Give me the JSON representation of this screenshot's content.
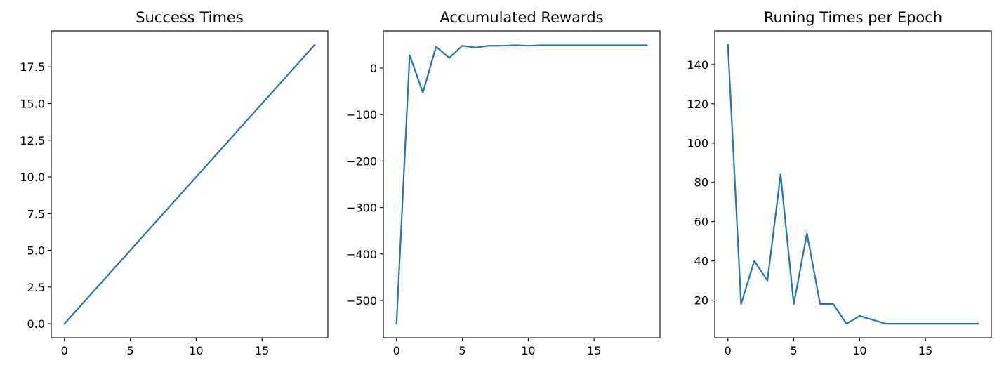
{
  "chart_data": [
    {
      "type": "line",
      "title": "Success Times",
      "xlabel": "",
      "ylabel": "",
      "x": [
        0,
        1,
        2,
        3,
        4,
        5,
        6,
        7,
        8,
        9,
        10,
        11,
        12,
        13,
        14,
        15,
        16,
        17,
        18,
        19
      ],
      "series": [
        {
          "values": [
            0,
            1,
            2,
            3,
            4,
            5,
            6,
            7,
            8,
            9,
            10,
            11,
            12,
            13,
            14,
            15,
            16,
            17,
            18,
            19
          ]
        }
      ],
      "xlim": [
        -1,
        20
      ],
      "ylim": [
        -0.95,
        19.95
      ],
      "xticks": [
        0,
        5,
        10,
        15
      ],
      "xtick_labels": [
        "0",
        "5",
        "10",
        "15"
      ],
      "yticks": [
        0,
        2.5,
        5,
        7.5,
        10,
        12.5,
        15,
        17.5
      ],
      "ytick_labels": [
        "0.0",
        "2.5",
        "5.0",
        "7.5",
        "10.0",
        "12.5",
        "15.0",
        "17.5"
      ],
      "grid": false
    },
    {
      "type": "line",
      "title": "Accumulated Rewards",
      "xlabel": "",
      "ylabel": "",
      "x": [
        0,
        1,
        2,
        3,
        4,
        5,
        6,
        7,
        8,
        9,
        10,
        11,
        12,
        13,
        14,
        15,
        16,
        17,
        18,
        19
      ],
      "series": [
        {
          "values": [
            -550,
            28,
            -53,
            46,
            22,
            48,
            44,
            48,
            48,
            49,
            48,
            49,
            49,
            49,
            49,
            49,
            49,
            49,
            49,
            49
          ]
        }
      ],
      "xlim": [
        -1,
        20
      ],
      "ylim": [
        -580,
        80
      ],
      "xticks": [
        0,
        5,
        10,
        15
      ],
      "xtick_labels": [
        "0",
        "5",
        "10",
        "15"
      ],
      "yticks": [
        0,
        -100,
        -200,
        -300,
        -400,
        -500
      ],
      "ytick_labels": [
        "0",
        "−100",
        "−200",
        "−300",
        "−400",
        "−500"
      ],
      "grid": false
    },
    {
      "type": "line",
      "title": "Runing Times per Epoch",
      "xlabel": "",
      "ylabel": "",
      "x": [
        0,
        1,
        2,
        3,
        4,
        5,
        6,
        7,
        8,
        9,
        10,
        11,
        12,
        13,
        14,
        15,
        16,
        17,
        18,
        19
      ],
      "series": [
        {
          "values": [
            150,
            18,
            40,
            30,
            84,
            18,
            54,
            18,
            18,
            8,
            12,
            10,
            8,
            8,
            8,
            8,
            8,
            8,
            8,
            8
          ]
        }
      ],
      "xlim": [
        -1,
        20
      ],
      "ylim": [
        0.9,
        157.1
      ],
      "xticks": [
        0,
        5,
        10,
        15
      ],
      "xtick_labels": [
        "0",
        "5",
        "10",
        "15"
      ],
      "yticks": [
        20,
        40,
        60,
        80,
        100,
        120,
        140
      ],
      "ytick_labels": [
        "20",
        "40",
        "60",
        "80",
        "100",
        "120",
        "140"
      ],
      "grid": false
    }
  ],
  "style": {
    "line_color": "#1f77b4",
    "axis_color": "#000000",
    "background": "#ffffff"
  }
}
